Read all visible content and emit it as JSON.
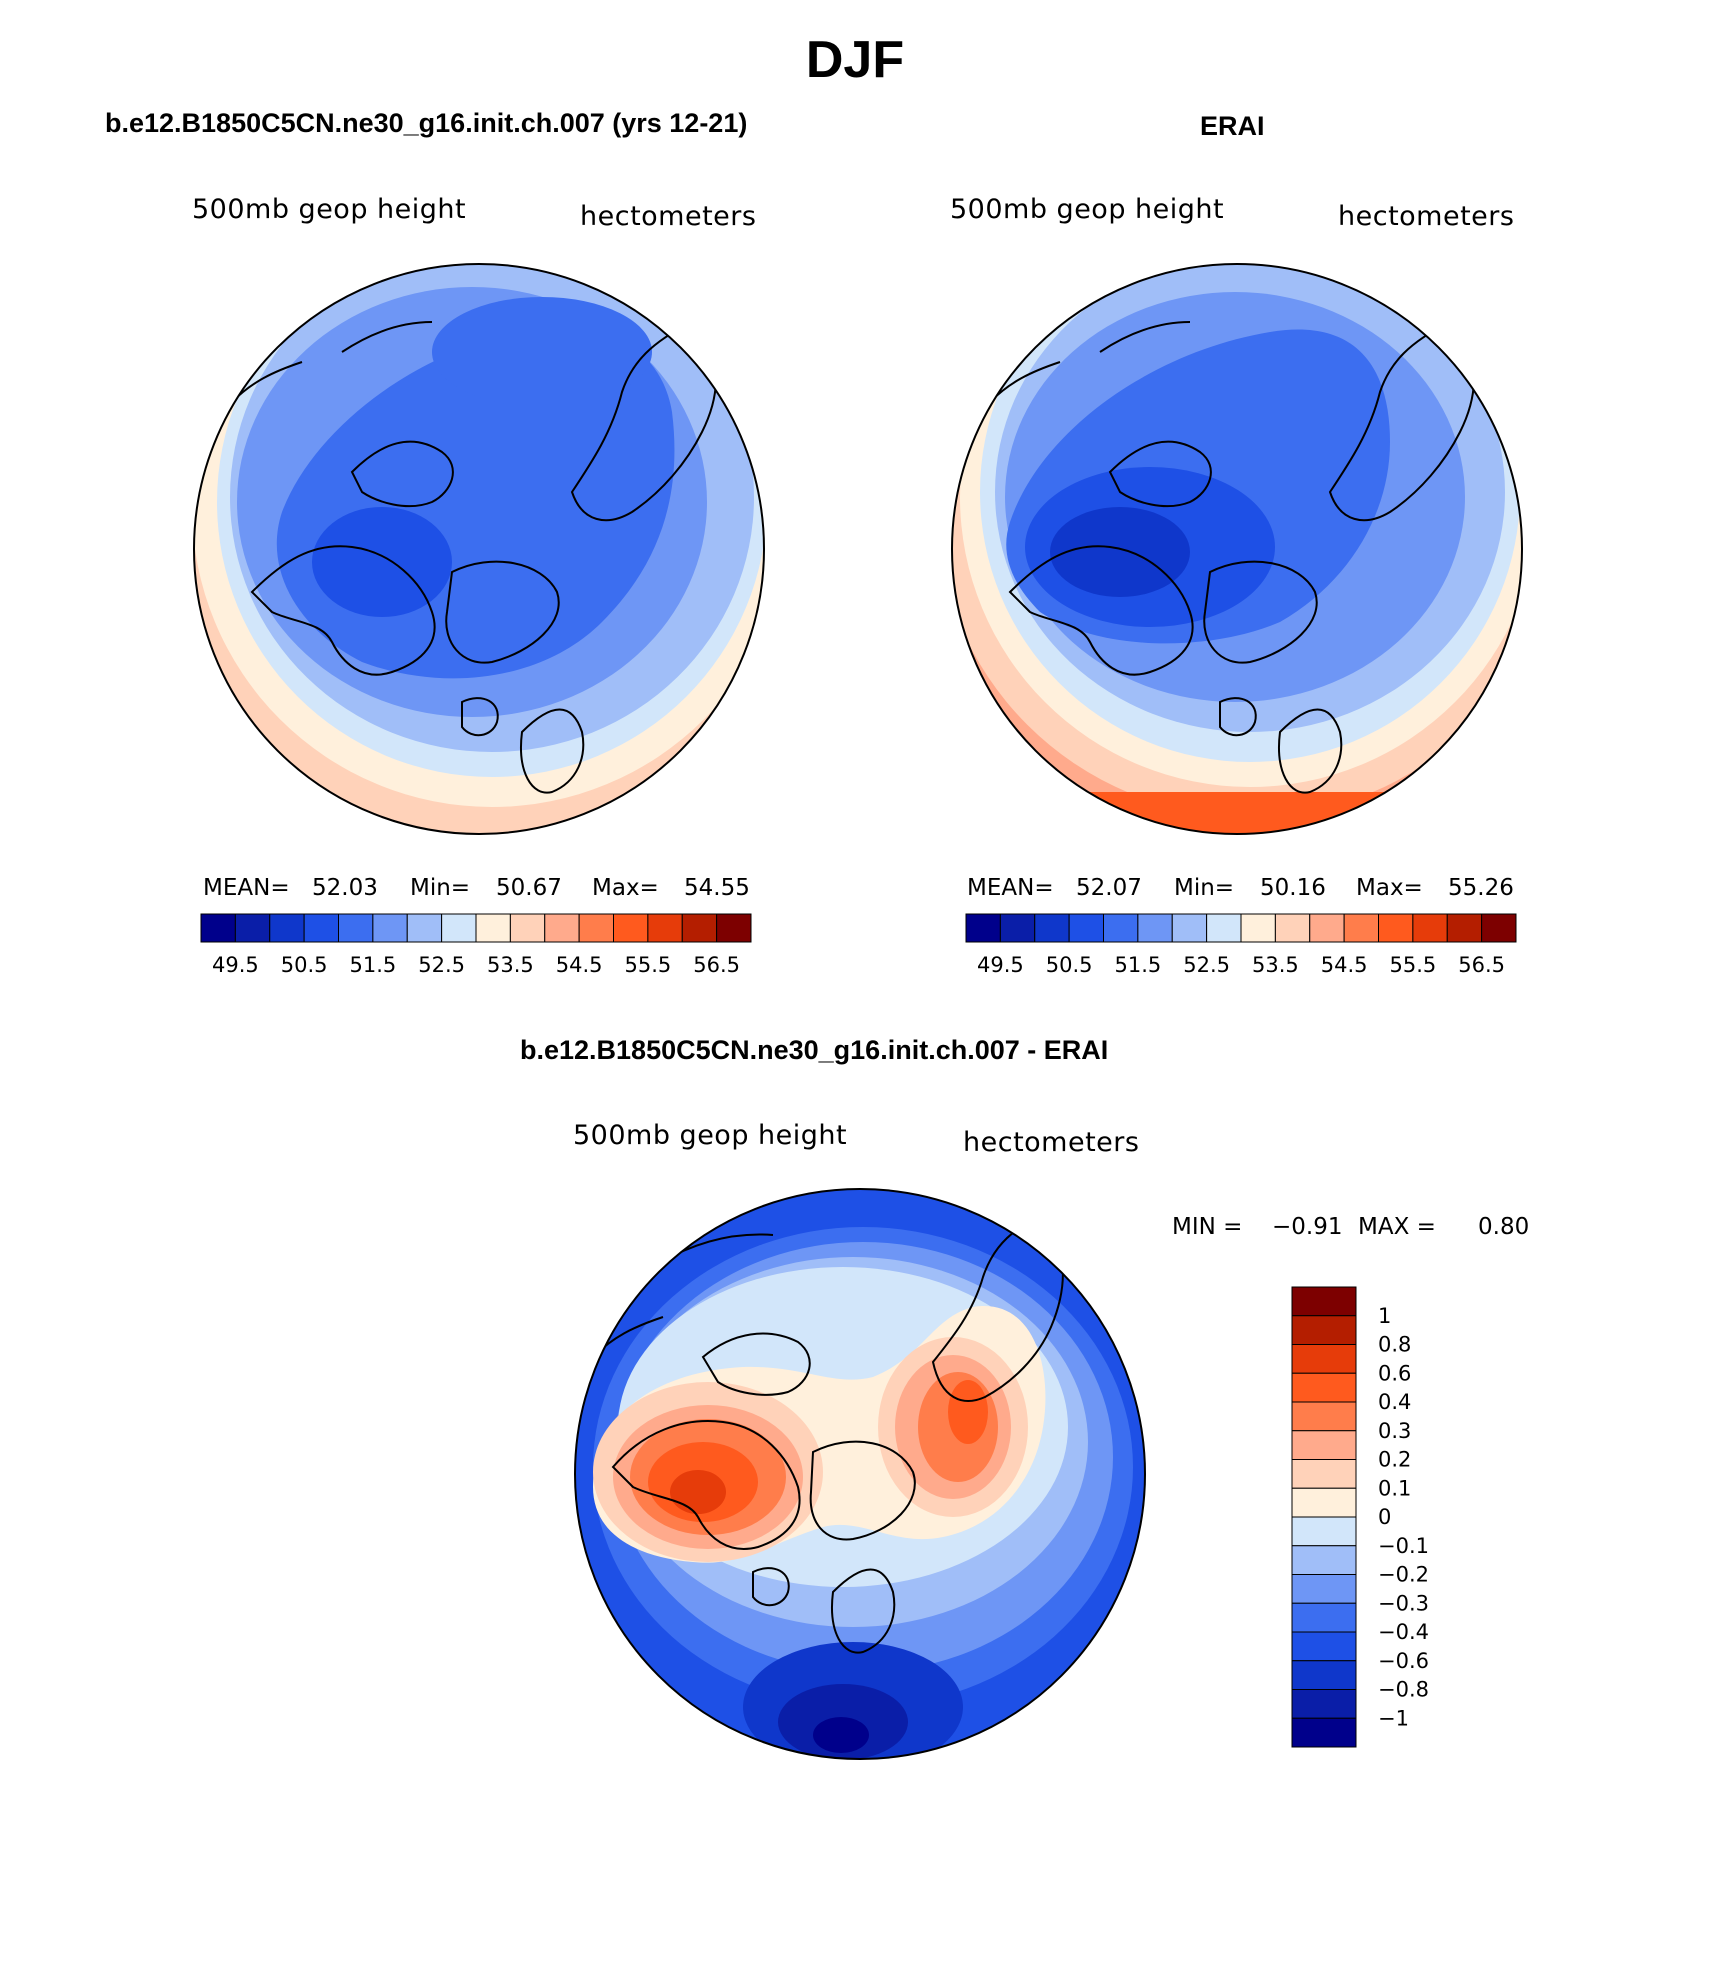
{
  "season": "DJF",
  "panels": {
    "model": {
      "title": "b.e12.B1850C5CN.ne30_g16.init.ch.007 (yrs 12-21)",
      "left_label": "500mb geop height",
      "right_label": "hectometers",
      "stats": {
        "mean_label": "MEAN=",
        "mean": "52.03",
        "min_label": "Min=",
        "min": "50.67",
        "max_label": "Max=",
        "max": "54.55"
      }
    },
    "obs": {
      "title": "ERAI",
      "left_label": "500mb geop height",
      "right_label": "hectometers",
      "stats": {
        "mean_label": "MEAN=",
        "mean": "52.07",
        "min_label": "Min=",
        "min": "50.16",
        "max_label": "Max=",
        "max": "55.26"
      }
    },
    "diff": {
      "title": "b.e12.B1850C5CN.ne30_g16.init.ch.007 - ERAI",
      "left_label": "500mb geop height",
      "right_label": "hectometers",
      "stats": {
        "min_label": "MIN =",
        "min": "−0.91",
        "max_label": "MAX =",
        "max": "0.80"
      }
    }
  },
  "chart_data": [
    {
      "type": "heatmap",
      "projection": "north polar stereographic",
      "title": "b.e12.B1850C5CN.ne30_g16.init.ch.007 (yrs 12-21)",
      "variable": "500mb geop height",
      "units": "hectometers",
      "mean": 52.03,
      "min": 50.67,
      "max": 54.55,
      "colorbar": {
        "tick_labels": [
          "49.5",
          "50.5",
          "51.5",
          "52.5",
          "53.5",
          "54.5",
          "55.5",
          "56.5"
        ],
        "colors": [
          "#00008b",
          "#0a1ea8",
          "#0f37cb",
          "#1e50e6",
          "#3c6ef0",
          "#6e96f5",
          "#a0bef8",
          "#d2e6fa",
          "#fff0dc",
          "#ffd2b9",
          "#ffaa8c",
          "#ff7d4b",
          "#ff5a1e",
          "#e63c0a",
          "#b41e00",
          "#7d0000"
        ]
      }
    },
    {
      "type": "heatmap",
      "projection": "north polar stereographic",
      "title": "ERAI",
      "variable": "500mb geop height",
      "units": "hectometers",
      "mean": 52.07,
      "min": 50.16,
      "max": 55.26,
      "colorbar": {
        "tick_labels": [
          "49.5",
          "50.5",
          "51.5",
          "52.5",
          "53.5",
          "54.5",
          "55.5",
          "56.5"
        ],
        "colors": [
          "#00008b",
          "#0a1ea8",
          "#0f37cb",
          "#1e50e6",
          "#3c6ef0",
          "#6e96f5",
          "#a0bef8",
          "#d2e6fa",
          "#fff0dc",
          "#ffd2b9",
          "#ffaa8c",
          "#ff7d4b",
          "#ff5a1e",
          "#e63c0a",
          "#b41e00",
          "#7d0000"
        ]
      }
    },
    {
      "type": "heatmap",
      "projection": "north polar stereographic",
      "title": "b.e12.B1850C5CN.ne30_g16.init.ch.007 - ERAI",
      "variable": "500mb geop height",
      "units": "hectometers",
      "min": -0.91,
      "max": 0.8,
      "colorbar": {
        "tick_labels": [
          "1",
          "0.8",
          "0.6",
          "0.4",
          "0.3",
          "0.2",
          "0.1",
          "0",
          "−0.1",
          "−0.2",
          "−0.3",
          "−0.4",
          "−0.6",
          "−0.8",
          "−1"
        ],
        "colors": [
          "#7d0000",
          "#b41e00",
          "#e63c0a",
          "#ff5a1e",
          "#ff7d4b",
          "#ffaa8c",
          "#ffd2b9",
          "#fff0dc",
          "#d2e6fa",
          "#a0bef8",
          "#6e96f5",
          "#3c6ef0",
          "#1e50e6",
          "#0f37cb",
          "#0a1ea8",
          "#00008b"
        ]
      }
    }
  ]
}
